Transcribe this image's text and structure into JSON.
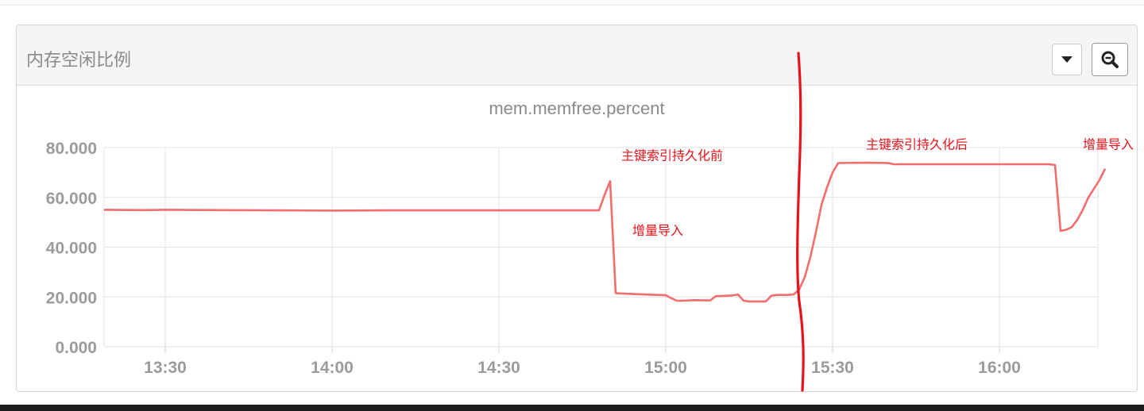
{
  "panel": {
    "title": "内存空闲比例"
  },
  "toolbar": {
    "dropdown_icon": "caret-down-icon",
    "zoom_icon": "zoom-out-icon"
  },
  "chart_data": {
    "type": "line",
    "title": "mem.memfree.percent",
    "xlabel": "",
    "ylabel": "",
    "ylim": [
      0,
      80
    ],
    "y_ticks": [
      "0.000",
      "20.000",
      "40.000",
      "60.000",
      "80.000"
    ],
    "x_ticks": [
      "13:30",
      "14:00",
      "14:30",
      "15:00",
      "15:30",
      "16:00"
    ],
    "grid": true,
    "series": [
      {
        "color": "#f26d6d",
        "points": [
          [
            "13:19",
            55.0
          ],
          [
            "13:26",
            54.9
          ],
          [
            "13:30",
            55.0
          ],
          [
            "13:40",
            54.9
          ],
          [
            "13:50",
            54.8
          ],
          [
            "14:00",
            54.7
          ],
          [
            "14:10",
            54.8
          ],
          [
            "14:20",
            54.8
          ],
          [
            "14:30",
            54.8
          ],
          [
            "14:40",
            54.8
          ],
          [
            "14:48",
            54.8
          ],
          [
            "14:49",
            61.0
          ],
          [
            "14:50",
            66.5
          ],
          [
            "14:51",
            21.5
          ],
          [
            "14:53",
            21.3
          ],
          [
            "14:56",
            21.0
          ],
          [
            "15:00",
            20.7
          ],
          [
            "15:01",
            19.5
          ],
          [
            "15:02",
            18.5
          ],
          [
            "15:03",
            18.5
          ],
          [
            "15:05",
            18.7
          ],
          [
            "15:08",
            18.6
          ],
          [
            "15:09",
            20.3
          ],
          [
            "15:12",
            20.6
          ],
          [
            "15:13",
            21.0
          ],
          [
            "15:14",
            18.5
          ],
          [
            "15:15",
            18.2
          ],
          [
            "15:18",
            18.2
          ],
          [
            "15:19",
            20.5
          ],
          [
            "15:20",
            20.8
          ],
          [
            "15:22",
            20.8
          ],
          [
            "15:23",
            21.0
          ],
          [
            "15:24",
            23.0
          ],
          [
            "15:25",
            28.0
          ],
          [
            "15:26",
            36.0
          ],
          [
            "15:27",
            46.0
          ],
          [
            "15:28",
            57.0
          ],
          [
            "15:29",
            64.0
          ],
          [
            "15:30",
            70.0
          ],
          [
            "15:31",
            73.8
          ],
          [
            "15:36",
            73.9
          ],
          [
            "15:40",
            73.8
          ],
          [
            "15:41",
            73.3
          ],
          [
            "15:50",
            73.3
          ],
          [
            "16:00",
            73.3
          ],
          [
            "16:09",
            73.3
          ],
          [
            "16:10",
            73.0
          ],
          [
            "16:11",
            46.5
          ],
          [
            "16:12",
            47.0
          ],
          [
            "16:13",
            48.0
          ],
          [
            "16:14",
            51.0
          ],
          [
            "16:15",
            55.0
          ],
          [
            "16:16",
            60.0
          ],
          [
            "16:17",
            63.5
          ],
          [
            "16:18",
            67.0
          ],
          [
            "16:19",
            71.5
          ]
        ]
      }
    ],
    "annotations": [
      {
        "text": "主键索引持久化前",
        "x": "14:52",
        "y": 75,
        "color": "#e8121b"
      },
      {
        "text": "增量导入",
        "x": "14:54",
        "y": 45,
        "color": "#e8121b"
      },
      {
        "text": "主键索引持久化后",
        "x": "15:36",
        "y": 79.5,
        "color": "#e8121b"
      },
      {
        "text": "增量导入",
        "x": "16:15",
        "y": 79.5,
        "color": "#e8121b"
      }
    ],
    "marker_line": {
      "x": "15:24",
      "color": "#e8121b"
    }
  }
}
